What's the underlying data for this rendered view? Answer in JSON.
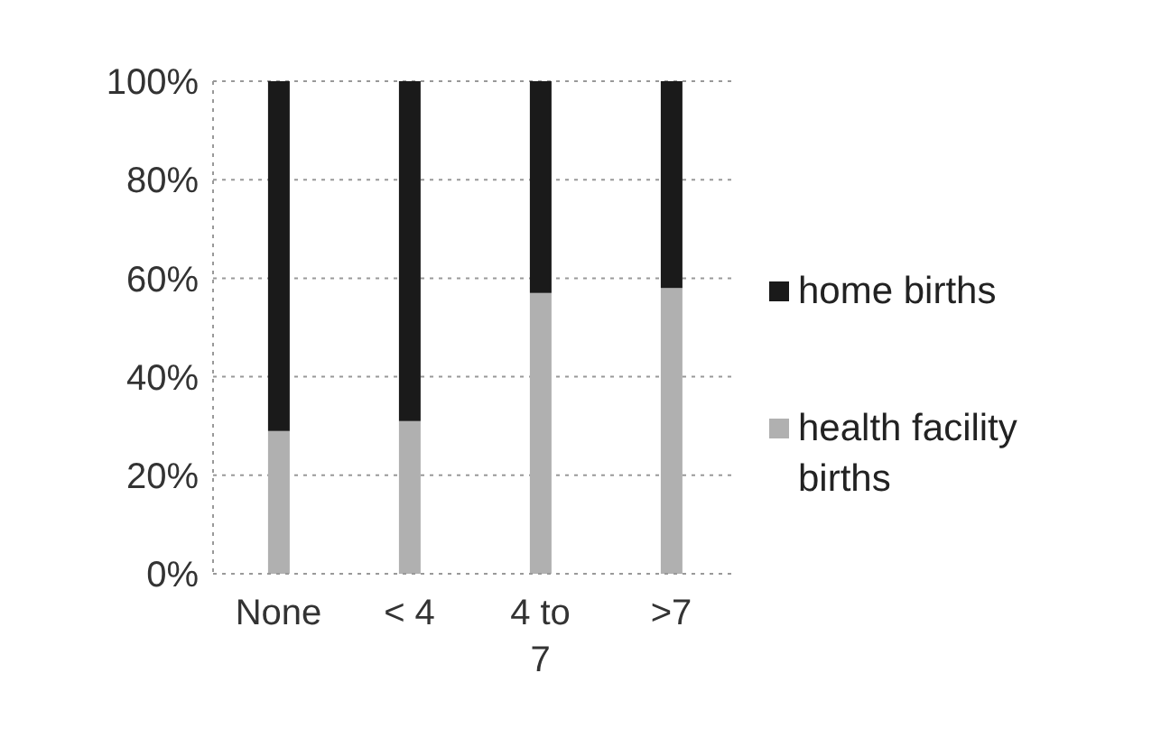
{
  "chart_data": {
    "type": "bar",
    "stacked": true,
    "categories": [
      "None",
      "< 4",
      "4 to 7",
      ">7"
    ],
    "series": [
      {
        "name": "health facility births",
        "color": "#b0b0b0",
        "values": [
          29,
          31,
          57,
          58
        ]
      },
      {
        "name": "home births",
        "color": "#1a1a1a",
        "values": [
          71,
          69,
          43,
          42
        ]
      }
    ],
    "ylim": [
      0,
      100
    ],
    "yticks": [
      {
        "value": 0,
        "label": "0%"
      },
      {
        "value": 20,
        "label": "20%"
      },
      {
        "value": 40,
        "label": "40%"
      },
      {
        "value": 60,
        "label": "60%"
      },
      {
        "value": 80,
        "label": "80%"
      },
      {
        "value": 100,
        "label": "100%"
      }
    ],
    "grid": "y",
    "legend": "right"
  }
}
